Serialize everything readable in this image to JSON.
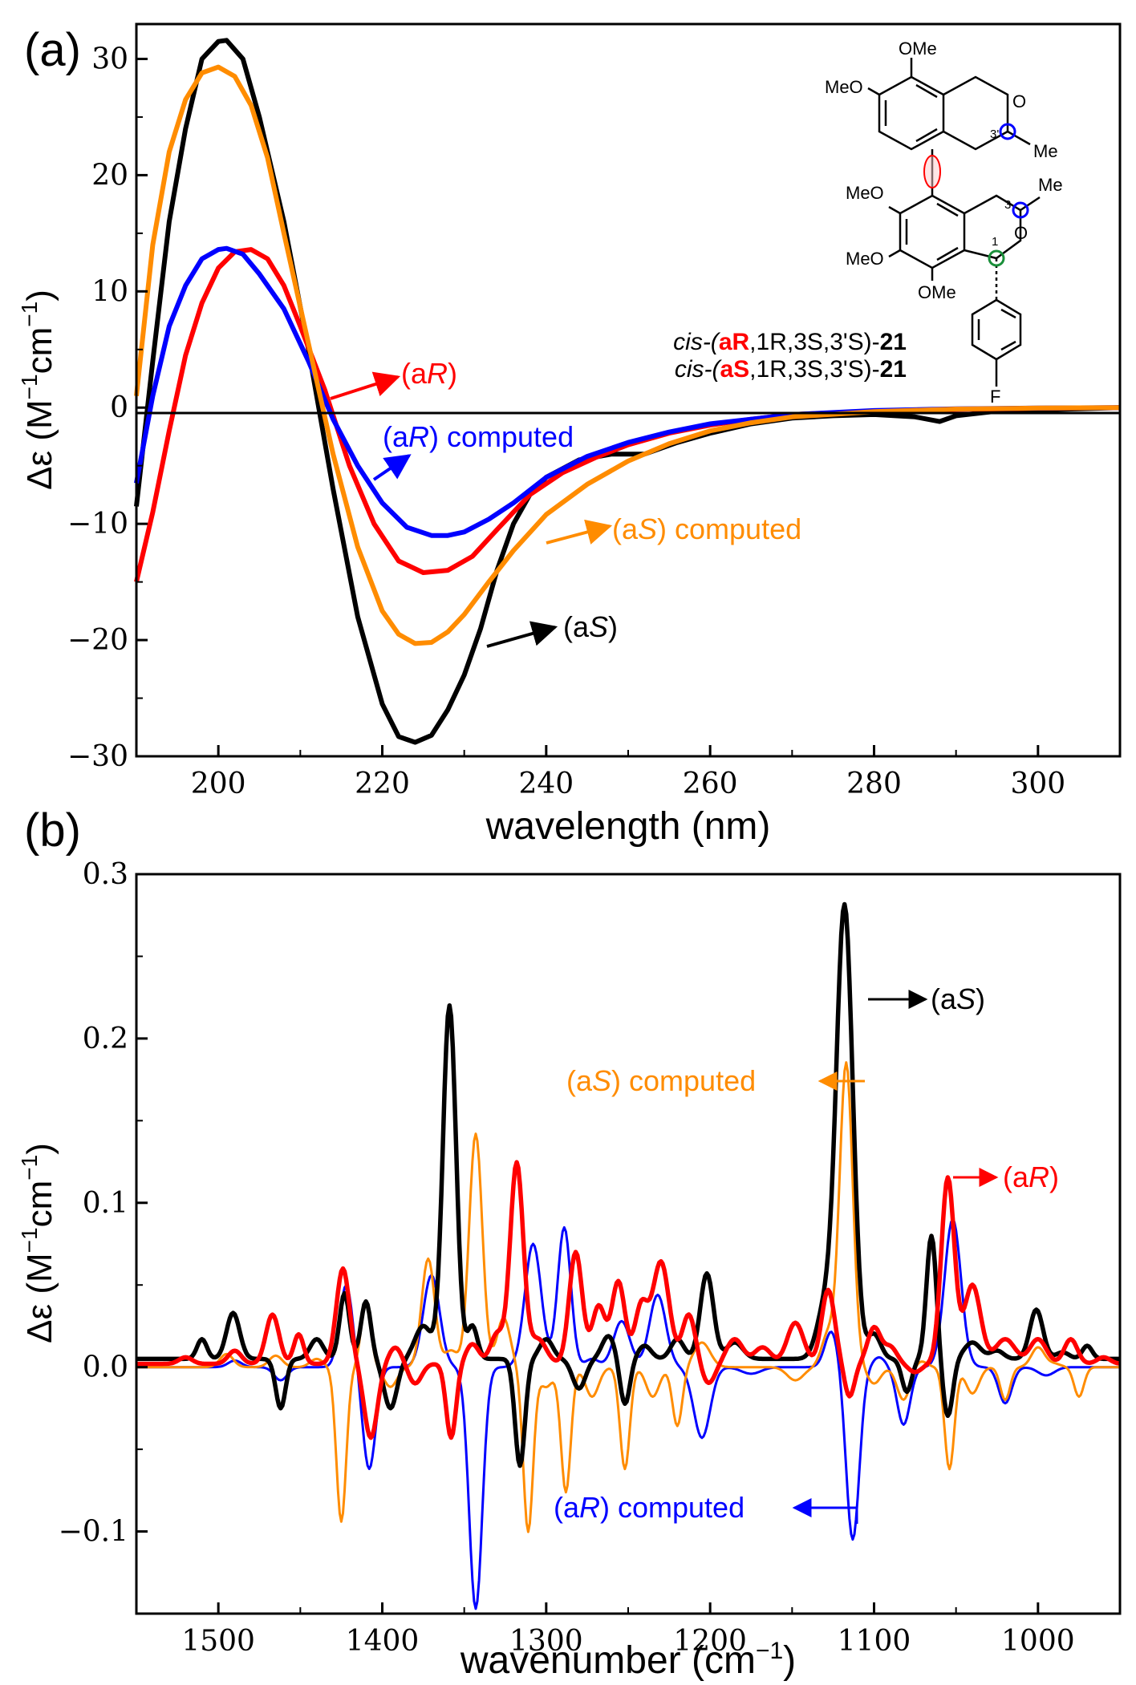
{
  "chart_data": [
    {
      "panel_label": "(a)",
      "type": "line",
      "xlabel": "wavelength (nm)",
      "ylabel_prefix": "Δε (M",
      "ylabel_sup1": "−1",
      "ylabel_mid": "cm",
      "ylabel_sup2": "−1",
      "ylabel_suffix": ")",
      "xlim": [
        190,
        310
      ],
      "ylim": [
        -30,
        33
      ],
      "xticks": [
        200,
        220,
        240,
        260,
        280,
        300
      ],
      "xtick_labels": [
        "200",
        "220",
        "240",
        "260",
        "280",
        "300"
      ],
      "yticks": [
        -30,
        -20,
        -10,
        0,
        10,
        20,
        30
      ],
      "ytick_labels": [
        "−30",
        "−20",
        "−10",
        "0",
        "10",
        "20",
        "30"
      ],
      "zero_line": true,
      "series": [
        {
          "name": "(aS)",
          "color": "#000000",
          "x": [
            190,
            192,
            194,
            196,
            198,
            200,
            201,
            203,
            205,
            208,
            211,
            214,
            217,
            220,
            222,
            224,
            226,
            228,
            230,
            232,
            234,
            236,
            238,
            240,
            244,
            248,
            252,
            256,
            260,
            265,
            270,
            275,
            280,
            285,
            288,
            290,
            295,
            300,
            305,
            310
          ],
          "y": [
            -8.5,
            4,
            16,
            24,
            30,
            31.5,
            31.6,
            30,
            25,
            16,
            5,
            -7,
            -18,
            -25.5,
            -28.3,
            -28.8,
            -28.2,
            -26,
            -23,
            -19,
            -14,
            -10,
            -7.5,
            -6,
            -4.5,
            -4,
            -4,
            -3,
            -2.2,
            -1.4,
            -0.9,
            -0.7,
            -0.6,
            -0.8,
            -1.2,
            -0.7,
            -0.3,
            -0.2,
            -0.1,
            0
          ]
        },
        {
          "name": "(aR)",
          "color": "#ff0000",
          "x": [
            190,
            192,
            194,
            196,
            198,
            200,
            202,
            204,
            206,
            208,
            210,
            213,
            216,
            219,
            222,
            225,
            228,
            231,
            234,
            238,
            242,
            246,
            250,
            255,
            260,
            265,
            270,
            280,
            290,
            300,
            310
          ],
          "y": [
            -15,
            -9,
            -2,
            4.5,
            9,
            12,
            13.4,
            13.6,
            12.8,
            10.5,
            7,
            1.5,
            -5,
            -10,
            -13.2,
            -14.2,
            -14,
            -12.8,
            -10.5,
            -7.5,
            -5.6,
            -4.3,
            -3.2,
            -2.2,
            -1.5,
            -1,
            -0.6,
            -0.3,
            -0.15,
            -0.05,
            0
          ]
        },
        {
          "name": "(aR) computed",
          "color": "#0000ff",
          "x": [
            190,
            192,
            194,
            196,
            198,
            200,
            201,
            203,
            205,
            208,
            211,
            214,
            217,
            220,
            223,
            226,
            228,
            230,
            233,
            236,
            240,
            245,
            250,
            255,
            260,
            265,
            270,
            280,
            290,
            300,
            310
          ],
          "y": [
            -6.5,
            1,
            7,
            10.5,
            12.8,
            13.6,
            13.7,
            13.2,
            11.5,
            8.5,
            4,
            -1,
            -5,
            -8.2,
            -10.3,
            -11,
            -11,
            -10.7,
            -9.6,
            -8.2,
            -6,
            -4.2,
            -3,
            -2.1,
            -1.4,
            -1,
            -0.6,
            -0.25,
            -0.1,
            -0.04,
            0
          ]
        },
        {
          "name": "(aS) computed",
          "color": "#ff8c00",
          "x": [
            190,
            192,
            194,
            196,
            198,
            200,
            202,
            204,
            206,
            208,
            211,
            214,
            217,
            220,
            222,
            224,
            226,
            228,
            230,
            233,
            236,
            240,
            245,
            250,
            255,
            260,
            265,
            270,
            280,
            290,
            300,
            310
          ],
          "y": [
            1,
            14,
            22,
            26.5,
            28.8,
            29.3,
            28.5,
            26,
            21.5,
            15,
            5.5,
            -4,
            -12,
            -17.5,
            -19.5,
            -20.3,
            -20.2,
            -19.3,
            -17.8,
            -15,
            -12.3,
            -9.2,
            -6.6,
            -4.6,
            -3.1,
            -2,
            -1.3,
            -0.8,
            -0.35,
            -0.12,
            -0.04,
            0
          ]
        }
      ],
      "annotations": [
        {
          "label": "(aR)",
          "color": "#ff0000"
        },
        {
          "label": "(aR) computed",
          "color": "#0000ff"
        },
        {
          "label": "(aS) computed",
          "color": "#ff8c00"
        },
        {
          "label": "(aS)",
          "color": "#000000"
        }
      ],
      "structure": {
        "ome_labels": [
          "OMe",
          "MeO",
          "MeO",
          "MeO",
          "OMe"
        ],
        "atom_labels": [
          "O",
          "O",
          "Me",
          "Me",
          "F",
          "3",
          "3'",
          "1"
        ],
        "compound_line1_prefix": "cis-(",
        "compound_line1_axis": "aR",
        "compound_line1_rest": ",1R,3S,3'S)-",
        "compound_line1_num": "21",
        "compound_line2_prefix": "cis-(",
        "compound_line2_axis": "aS",
        "compound_line2_rest": ",1R,3S,3'S)-",
        "compound_line2_num": "21"
      }
    },
    {
      "panel_label": "(b)",
      "type": "line",
      "xlabel_prefix": "wavenumber (cm",
      "xlabel_sup": "−1",
      "xlabel_suffix": ")",
      "ylabel_prefix": "Δε (M",
      "ylabel_sup1": "−1",
      "ylabel_mid": "cm",
      "ylabel_sup2": "−1",
      "ylabel_suffix": ")",
      "xlim": [
        1550,
        950
      ],
      "ylim": [
        -0.15,
        0.3
      ],
      "xticks": [
        1500,
        1400,
        1300,
        1200,
        1100,
        1000
      ],
      "xtick_labels": [
        "1500",
        "1400",
        "1300",
        "1200",
        "1100",
        "1000"
      ],
      "yticks": [
        -0.1,
        0.0,
        0.1,
        0.2,
        0.3
      ],
      "ytick_labels": [
        "−0.1",
        "0.0",
        "0.1",
        "0.2",
        "0.3"
      ],
      "series": [
        {
          "name": "(aS)",
          "color": "#000000",
          "baseline": 0.005,
          "peaks": [
            [
              1510,
              0.012,
              3
            ],
            [
              1491,
              0.028,
              4
            ],
            [
              1462,
              -0.03,
              3
            ],
            [
              1440,
              0.012,
              4
            ],
            [
              1423,
              0.04,
              3
            ],
            [
              1410,
              0.035,
              3
            ],
            [
              1395,
              -0.03,
              4
            ],
            [
              1375,
              0.02,
              5
            ],
            [
              1359,
              0.215,
              4
            ],
            [
              1345,
              0.02,
              3
            ],
            [
              1316,
              -0.065,
              3
            ],
            [
              1300,
              0.012,
              4
            ],
            [
              1280,
              -0.018,
              4
            ],
            [
              1262,
              0.014,
              4
            ],
            [
              1252,
              -0.028,
              3
            ],
            [
              1240,
              0.008,
              4
            ],
            [
              1220,
              0.012,
              4
            ],
            [
              1202,
              0.052,
              4
            ],
            [
              1185,
              0.01,
              5
            ],
            [
              1130,
              0.03,
              5
            ],
            [
              1118,
              0.275,
              5
            ],
            [
              1100,
              0.015,
              4
            ],
            [
              1080,
              -0.02,
              3
            ],
            [
              1065,
              0.075,
              3
            ],
            [
              1055,
              -0.035,
              3
            ],
            [
              1040,
              0.01,
              5
            ],
            [
              1025,
              0.005,
              4
            ],
            [
              1001,
              0.03,
              4
            ],
            [
              985,
              0.004,
              4
            ],
            [
              970,
              0.008,
              3
            ]
          ]
        },
        {
          "name": "(aR)",
          "color": "#ff0000",
          "baseline": 0.002,
          "peaks": [
            [
              1520,
              0.004,
              4
            ],
            [
              1490,
              0.008,
              4
            ],
            [
              1467,
              0.03,
              4
            ],
            [
              1451,
              0.018,
              3
            ],
            [
              1424,
              0.058,
              4
            ],
            [
              1407,
              -0.045,
              4
            ],
            [
              1392,
              0.01,
              4
            ],
            [
              1380,
              -0.012,
              4
            ],
            [
              1358,
              -0.045,
              3
            ],
            [
              1345,
              0.012,
              4
            ],
            [
              1330,
              0.018,
              4
            ],
            [
              1318,
              0.122,
              4
            ],
            [
              1305,
              0.015,
              5
            ],
            [
              1282,
              0.068,
              4
            ],
            [
              1268,
              0.035,
              4
            ],
            [
              1256,
              0.05,
              4
            ],
            [
              1242,
              0.035,
              4
            ],
            [
              1230,
              0.062,
              5
            ],
            [
              1213,
              0.03,
              4
            ],
            [
              1201,
              -0.012,
              4
            ],
            [
              1185,
              0.015,
              5
            ],
            [
              1168,
              0.01,
              5
            ],
            [
              1148,
              0.025,
              5
            ],
            [
              1128,
              0.045,
              4
            ],
            [
              1115,
              -0.02,
              3
            ],
            [
              1100,
              0.022,
              4
            ],
            [
              1090,
              0.01,
              4
            ],
            [
              1075,
              -0.005,
              4
            ],
            [
              1055,
              0.113,
              4
            ],
            [
              1040,
              0.048,
              5
            ],
            [
              1020,
              0.015,
              6
            ],
            [
              1000,
              0.015,
              5
            ],
            [
              980,
              0.015,
              4
            ],
            [
              960,
              0.004,
              4
            ]
          ]
        },
        {
          "name": "(aR) computed",
          "color": "#0000ff",
          "baseline": 0.0,
          "peaks": [
            [
              1490,
              0.004,
              4
            ],
            [
              1462,
              -0.008,
              4
            ],
            [
              1422,
              0.05,
              4
            ],
            [
              1408,
              -0.062,
              4
            ],
            [
              1370,
              0.056,
              5
            ],
            [
              1343,
              -0.147,
              4
            ],
            [
              1308,
              0.075,
              5
            ],
            [
              1289,
              0.085,
              4
            ],
            [
              1272,
              0.005,
              4
            ],
            [
              1254,
              0.028,
              5
            ],
            [
              1232,
              0.044,
              5
            ],
            [
              1205,
              -0.043,
              5
            ],
            [
              1175,
              -0.004,
              6
            ],
            [
              1126,
              0.022,
              4
            ],
            [
              1113,
              -0.105,
              4
            ],
            [
              1097,
              0.006,
              4
            ],
            [
              1082,
              -0.035,
              4
            ],
            [
              1052,
              0.09,
              5
            ],
            [
              1020,
              -0.022,
              4
            ],
            [
              995,
              -0.005,
              5
            ]
          ]
        },
        {
          "name": "(aS) computed",
          "color": "#ff8c00",
          "baseline": 0.0,
          "peaks": [
            [
              1495,
              0.008,
              4
            ],
            [
              1465,
              0.007,
              4
            ],
            [
              1440,
              0.005,
              4
            ],
            [
              1425,
              -0.094,
              3
            ],
            [
              1410,
              0.038,
              3
            ],
            [
              1395,
              -0.012,
              4
            ],
            [
              1372,
              0.066,
              4
            ],
            [
              1358,
              0.01,
              4
            ],
            [
              1343,
              0.142,
              4
            ],
            [
              1326,
              0.03,
              4
            ],
            [
              1311,
              -0.1,
              3
            ],
            [
              1300,
              -0.012,
              4
            ],
            [
              1288,
              -0.076,
              3
            ],
            [
              1272,
              -0.018,
              4
            ],
            [
              1252,
              -0.062,
              3
            ],
            [
              1235,
              -0.018,
              4
            ],
            [
              1220,
              -0.036,
              3
            ],
            [
              1205,
              0.015,
              5
            ],
            [
              1148,
              -0.008,
              5
            ],
            [
              1128,
              0.02,
              4
            ],
            [
              1117,
              0.185,
              4
            ],
            [
              1100,
              -0.01,
              4
            ],
            [
              1082,
              -0.02,
              4
            ],
            [
              1072,
              0.004,
              4
            ],
            [
              1054,
              -0.062,
              3
            ],
            [
              1040,
              -0.016,
              4
            ],
            [
              1020,
              -0.02,
              3
            ],
            [
              1000,
              0.012,
              4
            ],
            [
              990,
              0.002,
              4
            ],
            [
              975,
              -0.018,
              3
            ]
          ]
        }
      ],
      "annotations": [
        {
          "label": "(aS)",
          "color": "#000000"
        },
        {
          "label": "(aS) computed",
          "color": "#ff8c00"
        },
        {
          "label": "(aR)",
          "color": "#ff0000"
        },
        {
          "label": "(aR) computed",
          "color": "#0000ff"
        }
      ]
    }
  ]
}
